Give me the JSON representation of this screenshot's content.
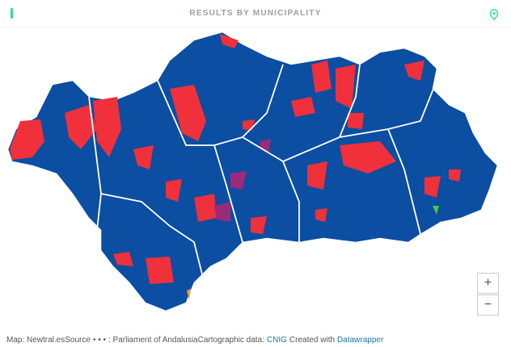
{
  "header": {
    "title": "RESULTS BY MUNICIPALITY"
  },
  "map": {
    "zoom_in": "+",
    "zoom_out": "−"
  },
  "footer": {
    "map_credit": "Map: Newtral.es",
    "source_label": "Source",
    "source_dots": "• • •",
    "source": ": Parliament of Andalusia",
    "cartographic_label": "Cartographic data:",
    "cartographic_link": "CNIG",
    "created_label": "Created with",
    "created_link": "Datawrapper"
  }
}
